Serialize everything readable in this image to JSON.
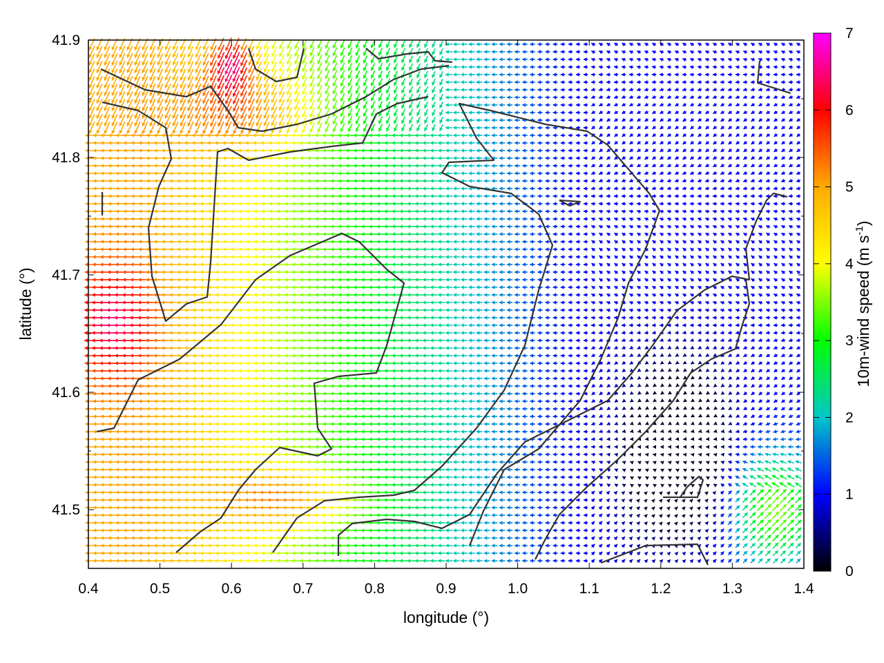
{
  "chart_data": {
    "type": "vector-field",
    "title": "",
    "xlabel": "longitude (°)",
    "ylabel": "latitude (°)",
    "xlim": [
      0.4,
      1.4
    ],
    "ylim": [
      41.45,
      41.9
    ],
    "xticks": [
      "0.4",
      "0.5",
      "0.6",
      "0.7",
      "0.8",
      "0.9",
      "1.0",
      "1.1",
      "1.2",
      "1.3",
      "1.4"
    ],
    "yticks": [
      "41.5",
      "41.6",
      "41.7",
      "41.8",
      "41.9"
    ],
    "colorbar": {
      "label_main": "10m-wind speed (m s",
      "label_sup": "-1",
      "label_end": ")",
      "range": [
        0,
        7
      ],
      "ticks": [
        "0",
        "1",
        "2",
        "3",
        "4",
        "5",
        "6",
        "7"
      ],
      "colors": [
        "#000000",
        "#0000ff",
        "#00c8c8",
        "#00ff00",
        "#ffff00",
        "#ffaa00",
        "#ff0000",
        "#ff00ff"
      ]
    },
    "contour_color": "#333333",
    "wind_field_summary": {
      "dominant_direction": "westward",
      "speed_west_side": 5,
      "speed_center": 3,
      "speed_east_side": 1,
      "max_speed": 7
    }
  }
}
